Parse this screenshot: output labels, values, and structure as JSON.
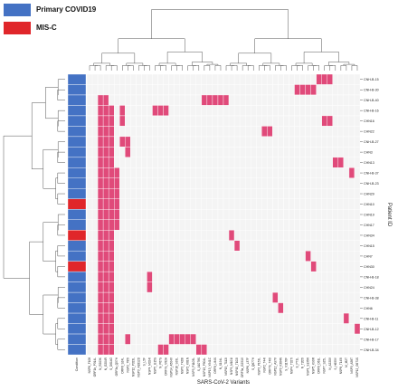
{
  "legend": {
    "items": [
      {
        "label": "Primary COVID19",
        "color": "#4472C4"
      },
      {
        "label": "MIS-C",
        "color": "#E0262A"
      }
    ]
  },
  "chart_data": {
    "type": "heatmap",
    "xlabel": "SARS-CoV-2 Variants",
    "ylabel": "Patient ID",
    "condition_column_label": "Condition",
    "colors": {
      "present": "#E04A7A",
      "absent": "#F4F4F4",
      "primary_covid19": "#4472C4",
      "mis_c": "#E0262A"
    },
    "grid": true,
    "rows": [
      "CNH-B-15",
      "CNH-B-30",
      "CNH-B-40",
      "CNH-B-16",
      "CHN16",
      "CHN22",
      "CNH-B-27",
      "CHN3",
      "CHN13",
      "CNH-B-37",
      "CNH-B-23",
      "CHN29",
      "CHN10",
      "CHN19",
      "CHN17",
      "CHN34",
      "CHN15",
      "CHN7",
      "CHN30",
      "CNH-B-18",
      "CHN24",
      "CNH-B-38",
      "CHN6",
      "CNH-B-11",
      "CNH-B-12",
      "CNH-B-17",
      "CNH-B-34"
    ],
    "condition": [
      "Primary COVID19",
      "Primary COVID19",
      "Primary COVID19",
      "Primary COVID19",
      "Primary COVID19",
      "Primary COVID19",
      "Primary COVID19",
      "Primary COVID19",
      "Primary COVID19",
      "Primary COVID19",
      "Primary COVID19",
      "Primary COVID19",
      "MIS-C",
      "Primary COVID19",
      "Primary COVID19",
      "MIS-C",
      "Primary COVID19",
      "Primary COVID19",
      "MIS-C",
      "Primary COVID19",
      "Primary COVID19",
      "Primary COVID19",
      "Primary COVID19",
      "Primary COVID19",
      "Primary COVID19",
      "Primary COVID19",
      "Primary COVID19"
    ],
    "columns": [
      "NSP6_F108",
      "ORF1b_P314L",
      "N_R203K",
      "N_G204R",
      "S_D614G",
      "ORF3a_Q57H",
      "ORF8_S24L",
      "NSP2_T85I",
      "NSP12_P323L",
      "NSP3_A1812D",
      "S_L5F",
      "NSP4_M324I",
      "NSP5_G15S",
      "N_P67S",
      "ORF7a_V82A",
      "NSP14_A504V",
      "NSP16_S33L",
      "NSP3_T428I",
      "NSP2_K81N",
      "NSP3_P1103L",
      "S_A1078S",
      "NSP13_P504L",
      "NSP13_Y541C",
      "ORF8_L84S",
      "N_S194L",
      "NSP15_T112I",
      "NSP9_M101I",
      "NSP10_T102I",
      "ORF3a_G251V",
      "NSP6_L37F",
      "S_Q677H",
      "NSP3_P153L",
      "NSP2_T44I",
      "ORF7b_T40I",
      "NSP12_A97V",
      "NSP3_K384N",
      "S_V1176F",
      "NSP4_T327I",
      "E_P71L",
      "N_T205I",
      "NSP1_S135R",
      "NSP5_K90R",
      "ORF6_D61L",
      "NSP7_S25L",
      "N_A220V",
      "S_H655Y",
      "NSP8_T145I",
      "M_I82T",
      "NSP3_A58T",
      "NSP12_G671S"
    ],
    "present_cells": [
      [
        0,
        42
      ],
      [
        0,
        43
      ],
      [
        0,
        44
      ],
      [
        1,
        38
      ],
      [
        1,
        39
      ],
      [
        1,
        40
      ],
      [
        1,
        41
      ],
      [
        2,
        2
      ],
      [
        2,
        3
      ],
      [
        2,
        21
      ],
      [
        2,
        22
      ],
      [
        2,
        23
      ],
      [
        2,
        24
      ],
      [
        2,
        25
      ],
      [
        3,
        2
      ],
      [
        3,
        3
      ],
      [
        3,
        4
      ],
      [
        3,
        6
      ],
      [
        3,
        12
      ],
      [
        3,
        13
      ],
      [
        3,
        14
      ],
      [
        4,
        2
      ],
      [
        4,
        3
      ],
      [
        4,
        4
      ],
      [
        4,
        6
      ],
      [
        4,
        43
      ],
      [
        4,
        44
      ],
      [
        5,
        2
      ],
      [
        5,
        3
      ],
      [
        5,
        4
      ],
      [
        5,
        32
      ],
      [
        5,
        33
      ],
      [
        6,
        2
      ],
      [
        6,
        3
      ],
      [
        6,
        4
      ],
      [
        6,
        6
      ],
      [
        6,
        7
      ],
      [
        7,
        2
      ],
      [
        7,
        3
      ],
      [
        7,
        4
      ],
      [
        7,
        7
      ],
      [
        8,
        2
      ],
      [
        8,
        3
      ],
      [
        8,
        4
      ],
      [
        8,
        45
      ],
      [
        8,
        46
      ],
      [
        9,
        2
      ],
      [
        9,
        3
      ],
      [
        9,
        4
      ],
      [
        9,
        5
      ],
      [
        9,
        48
      ],
      [
        10,
        2
      ],
      [
        10,
        3
      ],
      [
        10,
        4
      ],
      [
        10,
        5
      ],
      [
        11,
        2
      ],
      [
        11,
        3
      ],
      [
        11,
        4
      ],
      [
        11,
        5
      ],
      [
        12,
        2
      ],
      [
        12,
        3
      ],
      [
        12,
        4
      ],
      [
        12,
        5
      ],
      [
        13,
        2
      ],
      [
        13,
        3
      ],
      [
        13,
        4
      ],
      [
        13,
        5
      ],
      [
        14,
        2
      ],
      [
        14,
        3
      ],
      [
        14,
        4
      ],
      [
        14,
        5
      ],
      [
        15,
        2
      ],
      [
        15,
        3
      ],
      [
        15,
        4
      ],
      [
        15,
        26
      ],
      [
        16,
        2
      ],
      [
        16,
        3
      ],
      [
        16,
        4
      ],
      [
        16,
        27
      ],
      [
        17,
        2
      ],
      [
        17,
        3
      ],
      [
        17,
        4
      ],
      [
        17,
        40
      ],
      [
        18,
        2
      ],
      [
        18,
        3
      ],
      [
        18,
        4
      ],
      [
        18,
        41
      ],
      [
        19,
        2
      ],
      [
        19,
        3
      ],
      [
        19,
        4
      ],
      [
        19,
        11
      ],
      [
        20,
        2
      ],
      [
        20,
        3
      ],
      [
        20,
        4
      ],
      [
        20,
        11
      ],
      [
        21,
        2
      ],
      [
        21,
        3
      ],
      [
        21,
        4
      ],
      [
        21,
        34
      ],
      [
        22,
        2
      ],
      [
        22,
        3
      ],
      [
        22,
        4
      ],
      [
        22,
        35
      ],
      [
        23,
        2
      ],
      [
        23,
        3
      ],
      [
        23,
        4
      ],
      [
        23,
        47
      ],
      [
        24,
        2
      ],
      [
        24,
        3
      ],
      [
        24,
        4
      ],
      [
        24,
        49
      ],
      [
        25,
        2
      ],
      [
        25,
        3
      ],
      [
        25,
        4
      ],
      [
        25,
        7
      ],
      [
        25,
        15
      ],
      [
        25,
        16
      ],
      [
        25,
        17
      ],
      [
        25,
        18
      ],
      [
        25,
        19
      ],
      [
        26,
        2
      ],
      [
        26,
        3
      ],
      [
        26,
        4
      ],
      [
        26,
        13
      ],
      [
        26,
        14
      ],
      [
        26,
        20
      ],
      [
        26,
        21
      ]
    ]
  }
}
